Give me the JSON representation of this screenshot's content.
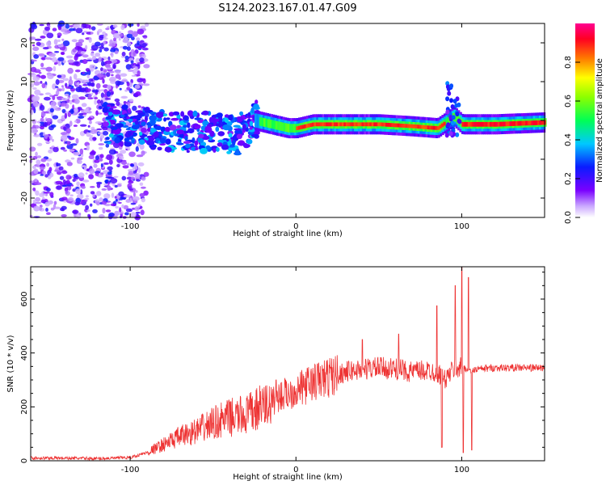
{
  "title": "S124.2023.167.01.47.G09",
  "spectrogram": {
    "xlabel": "Height of straight line (km)",
    "ylabel": "Frequency (Hz)",
    "xlim": [
      -160,
      150
    ],
    "ylim": [
      -25,
      25
    ],
    "xticks": [
      -100,
      0,
      100
    ],
    "yticks": [
      -20,
      -10,
      0,
      10,
      20
    ],
    "colorbar": {
      "label": "Normalized spectral amplitude",
      "ticks": [
        0.0,
        0.2,
        0.4,
        0.6,
        0.8
      ],
      "range": [
        0,
        1
      ],
      "colormap": "rainbow (white-violet-blue-cyan-green-yellow-red-magenta)"
    },
    "ridge": {
      "note": "Strong narrow frequency ridge near 0 to -2 Hz; scattered noise for x < -90 km",
      "centers": [
        [
          -110,
          -1
        ],
        [
          -90,
          -2
        ],
        [
          -70,
          -3
        ],
        [
          -50,
          -3
        ],
        [
          -35,
          -4
        ],
        [
          -25,
          0
        ],
        [
          -15,
          -1
        ],
        [
          -5,
          -2
        ],
        [
          0,
          -2
        ],
        [
          10,
          -1
        ],
        [
          30,
          -1
        ],
        [
          50,
          -1
        ],
        [
          70,
          -1.5
        ],
        [
          85,
          -2
        ],
        [
          95,
          1
        ],
        [
          100,
          -1
        ],
        [
          120,
          -1
        ],
        [
          150,
          -0.5
        ]
      ]
    }
  },
  "chart_data": [
    {
      "type": "heatmap",
      "title": "S124.2023.167.01.47.G09",
      "xlabel": "Height of straight line (km)",
      "ylabel": "Frequency (Hz)",
      "xlim": [
        -160,
        150
      ],
      "ylim": [
        -25,
        25
      ],
      "colorbar_label": "Normalized spectral amplitude",
      "colorbar_range": [
        0,
        1
      ]
    },
    {
      "type": "line",
      "xlabel": "Height of straight line (km)",
      "ylabel": "SNR (10 * v/v)",
      "xlim": [
        -160,
        150
      ],
      "ylim": [
        0,
        720
      ],
      "xticks": [
        -100,
        0,
        100
      ],
      "yticks": [
        0,
        200,
        400,
        600
      ],
      "series": [
        {
          "color": "#ee3333",
          "x": [
            -160,
            -140,
            -120,
            -100,
            -90,
            -80,
            -70,
            -60,
            -50,
            -40,
            -30,
            -20,
            -10,
            0,
            10,
            20,
            30,
            40,
            50,
            60,
            70,
            80,
            85,
            90,
            95,
            100,
            105,
            110,
            120,
            130,
            140,
            150
          ],
          "y": [
            10,
            10,
            8,
            12,
            30,
            60,
            90,
            110,
            140,
            160,
            170,
            200,
            240,
            260,
            290,
            310,
            330,
            340,
            345,
            340,
            330,
            335,
            330,
            300,
            340,
            350,
            335,
            340,
            345,
            345,
            345,
            345
          ],
          "spikes": [
            {
              "x": -20,
              "y": 230
            },
            {
              "x": -12,
              "y": 300
            },
            {
              "x": 40,
              "y": 450
            },
            {
              "x": 62,
              "y": 470
            },
            {
              "x": 85,
              "y": 575
            },
            {
              "x": 88,
              "y": 50
            },
            {
              "x": 96,
              "y": 650
            },
            {
              "x": 100,
              "y": 720
            },
            {
              "x": 101,
              "y": 30
            },
            {
              "x": 104,
              "y": 680
            },
            {
              "x": 106,
              "y": 40
            }
          ]
        }
      ]
    }
  ],
  "snr": {
    "xlabel": "Height of straight line (km)",
    "ylabel": "SNR (10 * v/v)"
  }
}
